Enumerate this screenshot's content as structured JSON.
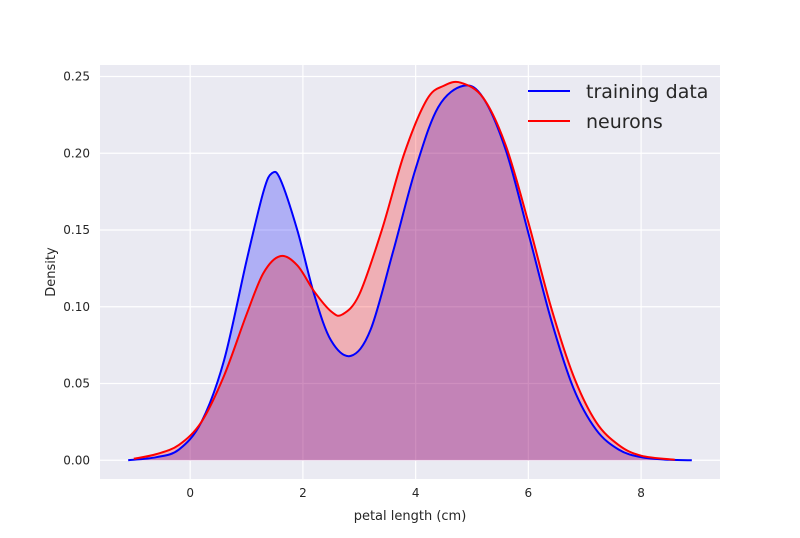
{
  "chart_data": {
    "type": "area",
    "xlabel": "petal length (cm)",
    "ylabel": "Density",
    "xlim": [
      -1.6,
      9.4
    ],
    "ylim": [
      -0.0122,
      0.2575
    ],
    "x_ticks": [
      "0",
      "2",
      "4",
      "6",
      "8"
    ],
    "y_ticks": [
      "0.00",
      "0.05",
      "0.10",
      "0.15",
      "0.20",
      "0.25"
    ],
    "grid": true,
    "legend_position": "top-right",
    "background": "#eaeaf2",
    "series": [
      {
        "name": "training data",
        "color": "#0000ff",
        "fill": "#0000ff",
        "x": [
          -1.1,
          -0.6,
          -0.2,
          0.2,
          0.6,
          1.0,
          1.3,
          1.45,
          1.6,
          1.9,
          2.2,
          2.5,
          2.85,
          3.2,
          3.6,
          4.0,
          4.4,
          4.85,
          5.2,
          5.6,
          6.0,
          6.4,
          6.8,
          7.2,
          7.6,
          8.0,
          8.5,
          8.9
        ],
        "y": [
          0.0,
          0.002,
          0.007,
          0.025,
          0.065,
          0.13,
          0.175,
          0.187,
          0.183,
          0.15,
          0.108,
          0.078,
          0.068,
          0.085,
          0.136,
          0.19,
          0.23,
          0.244,
          0.236,
          0.202,
          0.148,
          0.092,
          0.047,
          0.02,
          0.007,
          0.002,
          0.0003,
          0.0
        ]
      },
      {
        "name": "neurons",
        "color": "#ff0000",
        "fill": "#ff0000",
        "x": [
          -1.0,
          -0.6,
          -0.2,
          0.2,
          0.6,
          1.0,
          1.3,
          1.6,
          1.9,
          2.2,
          2.5,
          2.7,
          3.0,
          3.4,
          3.8,
          4.2,
          4.5,
          4.8,
          5.2,
          5.6,
          6.0,
          6.4,
          6.8,
          7.2,
          7.6,
          8.0,
          8.6
        ],
        "y": [
          0.001,
          0.004,
          0.01,
          0.025,
          0.055,
          0.095,
          0.122,
          0.133,
          0.127,
          0.11,
          0.097,
          0.095,
          0.108,
          0.15,
          0.2,
          0.235,
          0.244,
          0.246,
          0.236,
          0.205,
          0.155,
          0.1,
          0.055,
          0.025,
          0.01,
          0.003,
          0.0003
        ]
      }
    ]
  }
}
